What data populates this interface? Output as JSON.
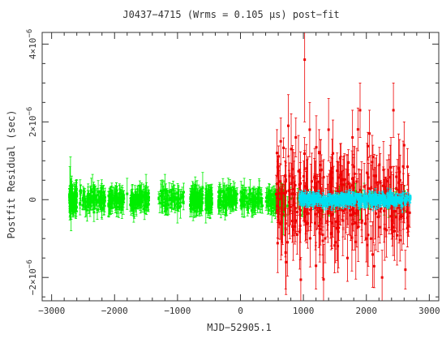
{
  "chart_data": {
    "type": "scatter",
    "title": "J0437−4715 (Wrms = 0.105 μs) post−fit",
    "xlabel": "MJD−52905.1",
    "ylabel": "Postfit Residual (sec)",
    "xlim": [
      -3150,
      3150
    ],
    "ylim": [
      -2.6e-06,
      4.3e-06
    ],
    "x_ticks": [
      {
        "value": -3000,
        "label": "−3000"
      },
      {
        "value": -2000,
        "label": "−2000"
      },
      {
        "value": -1000,
        "label": "−1000"
      },
      {
        "value": 0,
        "label": "0"
      },
      {
        "value": 1000,
        "label": "1000"
      },
      {
        "value": 2000,
        "label": "2000"
      },
      {
        "value": 3000,
        "label": "3000"
      }
    ],
    "y_ticks": [
      {
        "value": -2e-06,
        "mantissa": "−2×10",
        "exponent": "−6"
      },
      {
        "value": 0,
        "mantissa": "0",
        "exponent": ""
      },
      {
        "value": 2e-06,
        "mantissa": "2×10",
        "exponent": "−6"
      },
      {
        "value": 4e-06,
        "mantissa": "4×10",
        "exponent": "−6"
      }
    ],
    "grid": false,
    "legend": "none",
    "colors": {
      "frame": "#333333",
      "text": "#333333"
    },
    "series": [
      {
        "color": "#00ee00",
        "marker": "square",
        "x_range": [
          -2720,
          2700
        ],
        "count": 900,
        "y_scatter": 1.2e-07,
        "errorbar_typical": 2e-07,
        "points": [
          {
            "x": -2710,
            "y": 2e-07,
            "err": 6.5e-07
          },
          {
            "x": -2700,
            "y": 3e-07,
            "err": 8e-07
          },
          {
            "x": -2690,
            "y": -2e-07,
            "err": 6e-07
          },
          {
            "x": -2600,
            "y": 1e-07,
            "err": 4e-07
          },
          {
            "x": -2350,
            "y": 2e-07,
            "err": 4.5e-07
          },
          {
            "x": -2200,
            "y": -1e-07,
            "err": 4e-07
          },
          {
            "x": -1800,
            "y": 1.5e-07,
            "err": 4e-07
          },
          {
            "x": -1500,
            "y": 3e-07,
            "err": 3.5e-07
          },
          {
            "x": -1200,
            "y": 2.5e-07,
            "err": 4e-07
          },
          {
            "x": -1000,
            "y": -2e-07,
            "err": 4e-07
          },
          {
            "x": -600,
            "y": 3e-07,
            "err": 4e-07
          },
          {
            "x": -550,
            "y": -2.5e-07,
            "err": 3.5e-07
          },
          {
            "x": 60,
            "y": 2.5e-07,
            "err": 3e-07
          },
          {
            "x": 680,
            "y": -4e-07,
            "err": 5e-07
          },
          {
            "x": 1250,
            "y": -3e-07,
            "err": 3e-07
          },
          {
            "x": 1800,
            "y": -2e-07,
            "err": 3e-07
          }
        ]
      },
      {
        "color": "#ee0000",
        "marker": "square",
        "x_range": [
          560,
          2700
        ],
        "count": 320,
        "y_scatter": 5e-07,
        "errorbar_typical": 6e-07,
        "points": [
          {
            "x": 1020,
            "y": 3.6e-06,
            "err": 1.6e-06
          },
          {
            "x": 1320,
            "y": -2.05e-06,
            "err": 9e-07
          },
          {
            "x": 1200,
            "y": -1.7e-06,
            "err": 6e-07
          },
          {
            "x": 580,
            "y": 1.2e-06,
            "err": 6e-07
          },
          {
            "x": 640,
            "y": 1.5e-06,
            "err": 6e-07
          },
          {
            "x": 760,
            "y": 1.9e-06,
            "err": 8e-07
          },
          {
            "x": 880,
            "y": 1.6e-06,
            "err": 5e-07
          },
          {
            "x": 1100,
            "y": 1.8e-06,
            "err": 7e-07
          },
          {
            "x": 1250,
            "y": 1.2e-06,
            "err": 6e-07
          },
          {
            "x": 1400,
            "y": 1.8e-06,
            "err": 8e-07
          },
          {
            "x": 1780,
            "y": 1.6e-06,
            "err": 7e-07
          },
          {
            "x": 1900,
            "y": 2.3e-06,
            "err": 7e-07
          },
          {
            "x": 2050,
            "y": 1.7e-06,
            "err": 6e-07
          },
          {
            "x": 2430,
            "y": 2.3e-06,
            "err": 7e-07
          },
          {
            "x": 2600,
            "y": 1.4e-06,
            "err": 6e-07
          },
          {
            "x": 1700,
            "y": -1.5e-06,
            "err": 6e-07
          },
          {
            "x": 2250,
            "y": -2e-06,
            "err": 7e-07
          },
          {
            "x": 2620,
            "y": -1.8e-06,
            "err": 5e-07
          },
          {
            "x": 2000,
            "y": -1e-06,
            "err": 6e-07
          },
          {
            "x": 900,
            "y": -9e-07,
            "err": 5e-07
          }
        ]
      },
      {
        "color": "#00e0f0",
        "marker": "square",
        "x_range": [
          940,
          2700
        ],
        "count": 420,
        "y_scatter": 6e-08,
        "errorbar_typical": 1e-07,
        "points": []
      }
    ]
  }
}
